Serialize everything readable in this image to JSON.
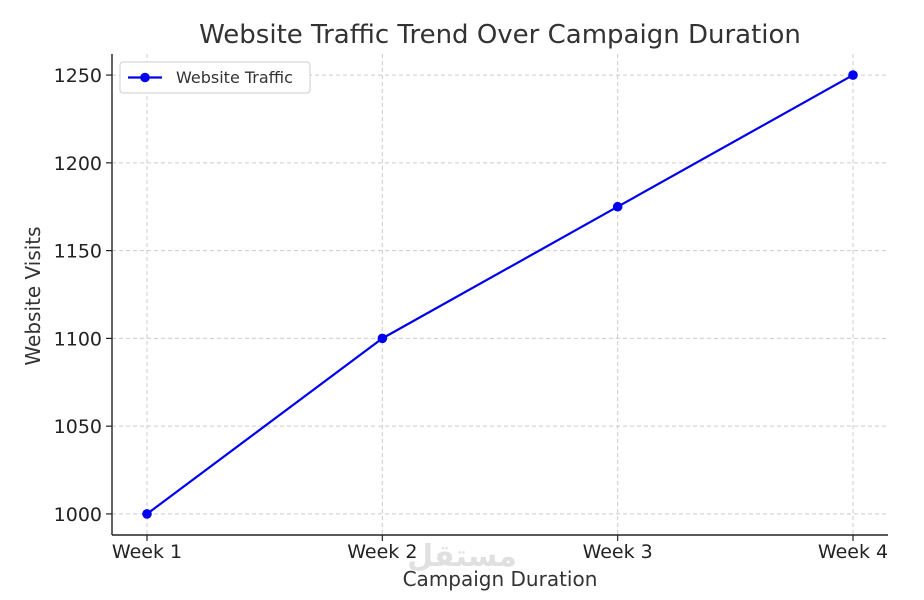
{
  "chart_data": {
    "type": "line",
    "title": "Website Traffic Trend Over Campaign Duration",
    "xlabel": "Campaign Duration",
    "ylabel": "Website Visits",
    "categories": [
      "Week 1",
      "Week 2",
      "Week 3",
      "Week 4"
    ],
    "series": [
      {
        "name": "Website Traffic",
        "values": [
          1000,
          1100,
          1175,
          1250
        ],
        "color": "#0000ee",
        "marker": "circle"
      }
    ],
    "yticks": [
      1000,
      1050,
      1100,
      1150,
      1200,
      1250
    ],
    "ylim": [
      988,
      1262
    ],
    "grid": true,
    "legend_position": "top-left"
  },
  "watermark": {
    "text": "مستقل"
  }
}
